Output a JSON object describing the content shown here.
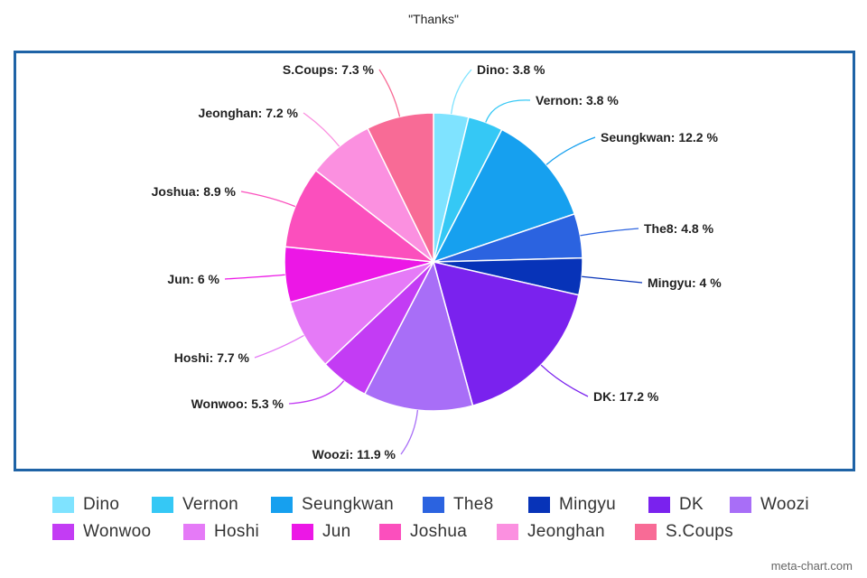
{
  "title": "\"Thanks\"",
  "credit": "meta-chart.com",
  "chart_data": {
    "type": "pie",
    "title": "\"Thanks\"",
    "legend_position": "bottom",
    "slices": [
      {
        "name": "Dino",
        "value": 3.8,
        "label": "Dino: 3.8 %",
        "color": "#7fe3ff"
      },
      {
        "name": "Vernon",
        "value": 3.8,
        "label": "Vernon: 3.8 %",
        "color": "#35c8f5"
      },
      {
        "name": "Seungkwan",
        "value": 12.2,
        "label": "Seungkwan: 12.2 %",
        "color": "#16a0ef"
      },
      {
        "name": "The8",
        "value": 4.8,
        "label": "The8: 4.8 %",
        "color": "#2b63e0"
      },
      {
        "name": "Mingyu",
        "value": 4,
        "label": "Mingyu: 4 %",
        "color": "#0733b8"
      },
      {
        "name": "DK",
        "value": 17.2,
        "label": "DK: 17.2 %",
        "color": "#7a22ee"
      },
      {
        "name": "Woozi",
        "value": 11.9,
        "label": "Woozi: 11.9 %",
        "color": "#a86ef7"
      },
      {
        "name": "Wonwoo",
        "value": 5.3,
        "label": "Wonwoo: 5.3 %",
        "color": "#c33cf4"
      },
      {
        "name": "Hoshi",
        "value": 7.7,
        "label": "Hoshi: 7.7 %",
        "color": "#e57af7"
      },
      {
        "name": "Jun",
        "value": 6,
        "label": "Jun: 6 %",
        "color": "#ec17e6"
      },
      {
        "name": "Joshua",
        "value": 8.9,
        "label": "Joshua: 8.9 %",
        "color": "#fb4fbd"
      },
      {
        "name": "Jeonghan",
        "value": 7.2,
        "label": "Jeonghan: 7.2 %",
        "color": "#fb90e0"
      },
      {
        "name": "S.Coups",
        "value": 7.3,
        "label": "S.Coups: 7.3 %",
        "color": "#f86b96"
      }
    ]
  }
}
